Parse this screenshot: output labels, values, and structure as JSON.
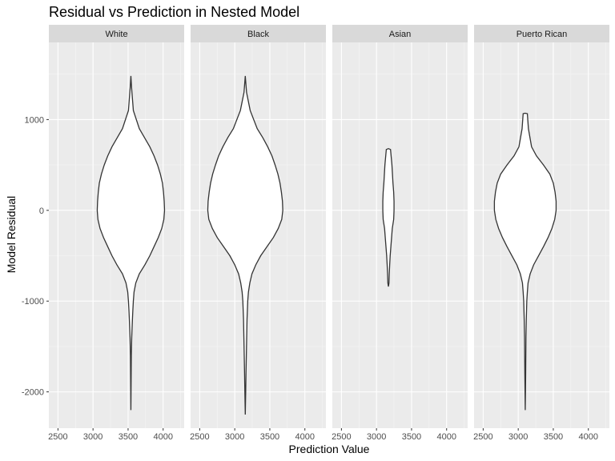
{
  "chart_data": {
    "type": "violin",
    "title": "Residual vs Prediction in Nested Model",
    "xlabel": "Prediction Value",
    "ylabel": "Model Residual",
    "xlim": [
      2370,
      4300
    ],
    "ylim": [
      -2400,
      1850
    ],
    "x_ticks": [
      2500,
      3000,
      3500,
      4000
    ],
    "y_ticks": [
      1000,
      0,
      -1000,
      -2000
    ],
    "y_tick_labels": [
      "1000",
      "0",
      "-1000",
      "-2000"
    ],
    "grid": true,
    "panels": [
      {
        "name": "White",
        "center_x": 3540,
        "profile": [
          [
            1480,
            0
          ],
          [
            1350,
            10
          ],
          [
            1100,
            35
          ],
          [
            900,
            120
          ],
          [
            800,
            195
          ],
          [
            700,
            270
          ],
          [
            600,
            330
          ],
          [
            500,
            380
          ],
          [
            400,
            420
          ],
          [
            300,
            450
          ],
          [
            200,
            465
          ],
          [
            100,
            475
          ],
          [
            0,
            480
          ],
          [
            -100,
            470
          ],
          [
            -200,
            440
          ],
          [
            -300,
            390
          ],
          [
            -400,
            330
          ],
          [
            -500,
            270
          ],
          [
            -600,
            200
          ],
          [
            -700,
            120
          ],
          [
            -800,
            70
          ],
          [
            -900,
            45
          ],
          [
            -1000,
            35
          ],
          [
            -1100,
            28
          ],
          [
            -1200,
            22
          ],
          [
            -1400,
            12
          ],
          [
            -1600,
            6
          ],
          [
            -1800,
            4
          ],
          [
            -2000,
            2
          ],
          [
            -2200,
            0
          ]
        ]
      },
      {
        "name": "Black",
        "center_x": 3150,
        "profile": [
          [
            1480,
            0
          ],
          [
            1300,
            18
          ],
          [
            1100,
            70
          ],
          [
            900,
            170
          ],
          [
            800,
            250
          ],
          [
            700,
            320
          ],
          [
            600,
            380
          ],
          [
            500,
            425
          ],
          [
            400,
            465
          ],
          [
            300,
            495
          ],
          [
            200,
            515
          ],
          [
            100,
            530
          ],
          [
            0,
            535
          ],
          [
            -100,
            520
          ],
          [
            -200,
            470
          ],
          [
            -300,
            400
          ],
          [
            -400,
            310
          ],
          [
            -500,
            220
          ],
          [
            -600,
            150
          ],
          [
            -700,
            95
          ],
          [
            -800,
            65
          ],
          [
            -900,
            45
          ],
          [
            -1000,
            35
          ],
          [
            -1100,
            30
          ],
          [
            -1200,
            25
          ],
          [
            -1400,
            20
          ],
          [
            -1600,
            15
          ],
          [
            -1800,
            10
          ],
          [
            -2000,
            6
          ],
          [
            -2250,
            0
          ]
        ]
      },
      {
        "name": "Asian",
        "center_x": 3170,
        "profile": [
          [
            680,
            0
          ],
          [
            670,
            30
          ],
          [
            500,
            50
          ],
          [
            300,
            65
          ],
          [
            200,
            75
          ],
          [
            100,
            80
          ],
          [
            0,
            80
          ],
          [
            -100,
            75
          ],
          [
            -200,
            55
          ],
          [
            -300,
            45
          ],
          [
            -400,
            35
          ],
          [
            -500,
            25
          ],
          [
            -600,
            18
          ],
          [
            -700,
            12
          ],
          [
            -800,
            8
          ],
          [
            -840,
            0
          ]
        ]
      },
      {
        "name": "Puerto Rican",
        "center_x": 3100,
        "profile": [
          [
            1070,
            0
          ],
          [
            1065,
            30
          ],
          [
            900,
            45
          ],
          [
            700,
            90
          ],
          [
            600,
            160
          ],
          [
            500,
            260
          ],
          [
            400,
            350
          ],
          [
            300,
            400
          ],
          [
            200,
            425
          ],
          [
            100,
            440
          ],
          [
            0,
            440
          ],
          [
            -100,
            420
          ],
          [
            -200,
            380
          ],
          [
            -300,
            325
          ],
          [
            -400,
            260
          ],
          [
            -500,
            190
          ],
          [
            -600,
            120
          ],
          [
            -700,
            70
          ],
          [
            -800,
            40
          ],
          [
            -900,
            30
          ],
          [
            -1000,
            22
          ],
          [
            -1200,
            15
          ],
          [
            -1400,
            10
          ],
          [
            -1800,
            6
          ],
          [
            -2200,
            0
          ]
        ]
      }
    ]
  }
}
